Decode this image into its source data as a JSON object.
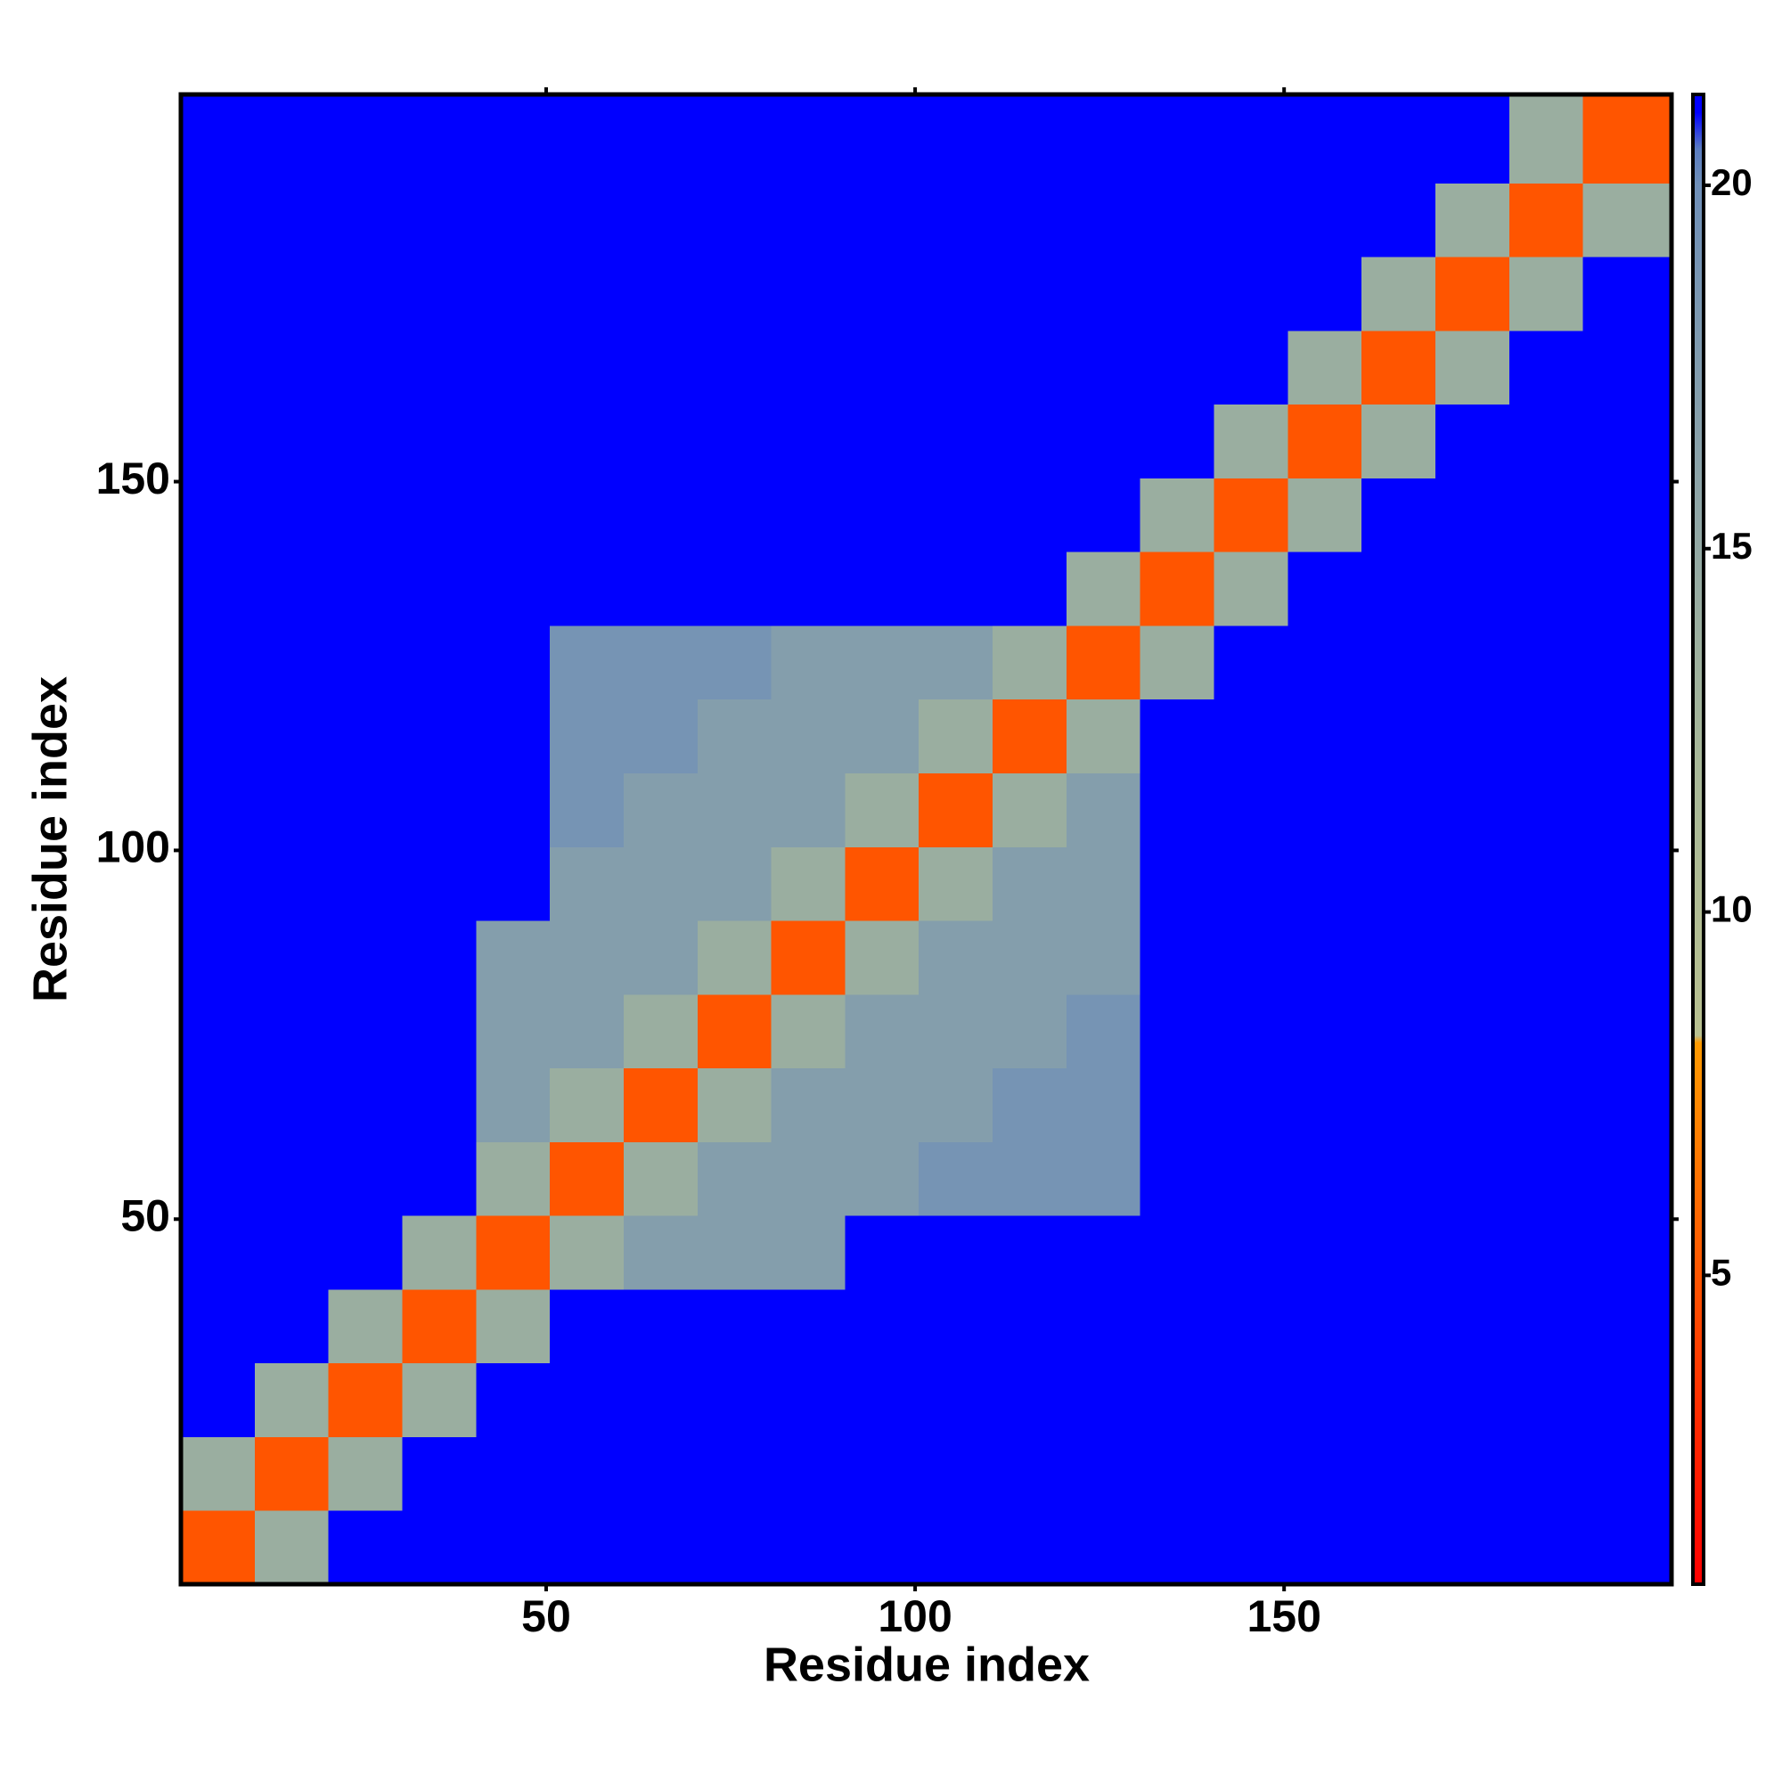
{
  "chart_data": {
    "type": "heatmap",
    "x_label": "Residue index",
    "y_label": "Residue index",
    "x_edges": [
      0.5,
      10.5,
      20.5,
      30.5,
      40.5,
      50.5,
      60.5,
      70.5,
      80.5,
      90.5,
      100.5,
      110.5,
      120.5,
      130.5,
      140.5,
      150.5,
      160.5,
      170.5,
      180.5,
      190.5,
      202.5
    ],
    "y_edges": [
      0.5,
      10.5,
      20.5,
      30.5,
      40.5,
      50.5,
      60.5,
      70.5,
      80.5,
      90.5,
      100.5,
      110.5,
      120.5,
      130.5,
      140.5,
      150.5,
      160.5,
      170.5,
      180.5,
      190.5,
      202.5
    ],
    "z": [
      [
        5,
        14,
        21,
        21,
        21,
        21,
        21,
        21,
        21,
        21,
        21,
        21,
        21,
        21,
        21,
        21,
        21,
        21,
        21,
        21
      ],
      [
        14,
        5,
        14,
        21,
        21,
        21,
        21,
        21,
        21,
        21,
        21,
        21,
        21,
        21,
        21,
        21,
        21,
        21,
        21,
        21
      ],
      [
        21,
        14,
        5,
        14,
        21,
        21,
        21,
        21,
        21,
        21,
        21,
        21,
        21,
        21,
        21,
        21,
        21,
        21,
        21,
        21
      ],
      [
        21,
        21,
        14,
        5,
        14,
        21,
        21,
        21,
        21,
        21,
        21,
        21,
        21,
        21,
        21,
        21,
        21,
        21,
        21,
        21
      ],
      [
        21,
        21,
        21,
        14,
        5,
        14,
        17,
        17,
        17,
        21,
        21,
        21,
        21,
        21,
        21,
        21,
        21,
        21,
        21,
        21
      ],
      [
        21,
        21,
        21,
        21,
        14,
        5,
        14,
        17,
        17,
        17,
        19,
        19,
        19,
        21,
        21,
        21,
        21,
        21,
        21,
        21
      ],
      [
        21,
        21,
        21,
        21,
        17,
        14,
        5,
        14,
        17,
        17,
        17,
        19,
        19,
        21,
        21,
        21,
        21,
        21,
        21,
        21
      ],
      [
        21,
        21,
        21,
        21,
        17,
        17,
        14,
        5,
        14,
        17,
        17,
        17,
        19,
        21,
        21,
        21,
        21,
        21,
        21,
        21
      ],
      [
        21,
        21,
        21,
        21,
        17,
        17,
        17,
        14,
        5,
        14,
        17,
        17,
        17,
        21,
        21,
        21,
        21,
        21,
        21,
        21
      ],
      [
        21,
        21,
        21,
        21,
        21,
        17,
        17,
        17,
        14,
        5,
        14,
        17,
        17,
        21,
        21,
        21,
        21,
        21,
        21,
        21
      ],
      [
        21,
        21,
        21,
        21,
        21,
        19,
        17,
        17,
        17,
        14,
        5,
        14,
        17,
        21,
        21,
        21,
        21,
        21,
        21,
        21
      ],
      [
        21,
        21,
        21,
        21,
        21,
        19,
        19,
        17,
        17,
        17,
        14,
        5,
        14,
        21,
        21,
        21,
        21,
        21,
        21,
        21
      ],
      [
        21,
        21,
        21,
        21,
        21,
        19,
        19,
        19,
        17,
        17,
        17,
        14,
        5,
        14,
        21,
        21,
        21,
        21,
        21,
        21
      ],
      [
        21,
        21,
        21,
        21,
        21,
        21,
        21,
        21,
        21,
        21,
        21,
        21,
        14,
        5,
        14,
        21,
        21,
        21,
        21,
        21
      ],
      [
        21,
        21,
        21,
        21,
        21,
        21,
        21,
        21,
        21,
        21,
        21,
        21,
        21,
        14,
        5,
        14,
        21,
        21,
        21,
        21
      ],
      [
        21,
        21,
        21,
        21,
        21,
        21,
        21,
        21,
        21,
        21,
        21,
        21,
        21,
        21,
        14,
        5,
        14,
        21,
        21,
        21
      ],
      [
        21,
        21,
        21,
        21,
        21,
        21,
        21,
        21,
        21,
        21,
        21,
        21,
        21,
        21,
        21,
        14,
        5,
        14,
        21,
        21
      ],
      [
        21,
        21,
        21,
        21,
        21,
        21,
        21,
        21,
        21,
        21,
        21,
        21,
        21,
        21,
        21,
        21,
        14,
        5,
        14,
        21
      ],
      [
        21,
        21,
        21,
        21,
        21,
        21,
        21,
        21,
        21,
        21,
        21,
        21,
        21,
        21,
        21,
        21,
        21,
        14,
        5,
        14
      ],
      [
        21,
        21,
        21,
        21,
        21,
        21,
        21,
        21,
        21,
        21,
        21,
        21,
        21,
        21,
        21,
        21,
        21,
        21,
        14,
        5
      ]
    ],
    "xlim": [
      0.5,
      202.5
    ],
    "ylim": [
      0.5,
      202.5
    ],
    "xticks": [
      50,
      100,
      150
    ],
    "yticks": [
      50,
      100,
      150
    ],
    "zlim": [
      0.75,
      21.25
    ],
    "zticks": [
      5,
      10,
      15,
      20
    ],
    "colorscale": [
      [
        0.75,
        "#ff0000"
      ],
      [
        3,
        "#ff2a00"
      ],
      [
        8.2,
        "#ff9a00"
      ],
      [
        8.3,
        "#b8c090"
      ],
      [
        12,
        "#a8b898"
      ],
      [
        20,
        "#6f8fb8"
      ],
      [
        20.5,
        "#5a7cc0"
      ],
      [
        21,
        "#0000ff"
      ],
      [
        21.25,
        "#0000ff"
      ]
    ]
  }
}
